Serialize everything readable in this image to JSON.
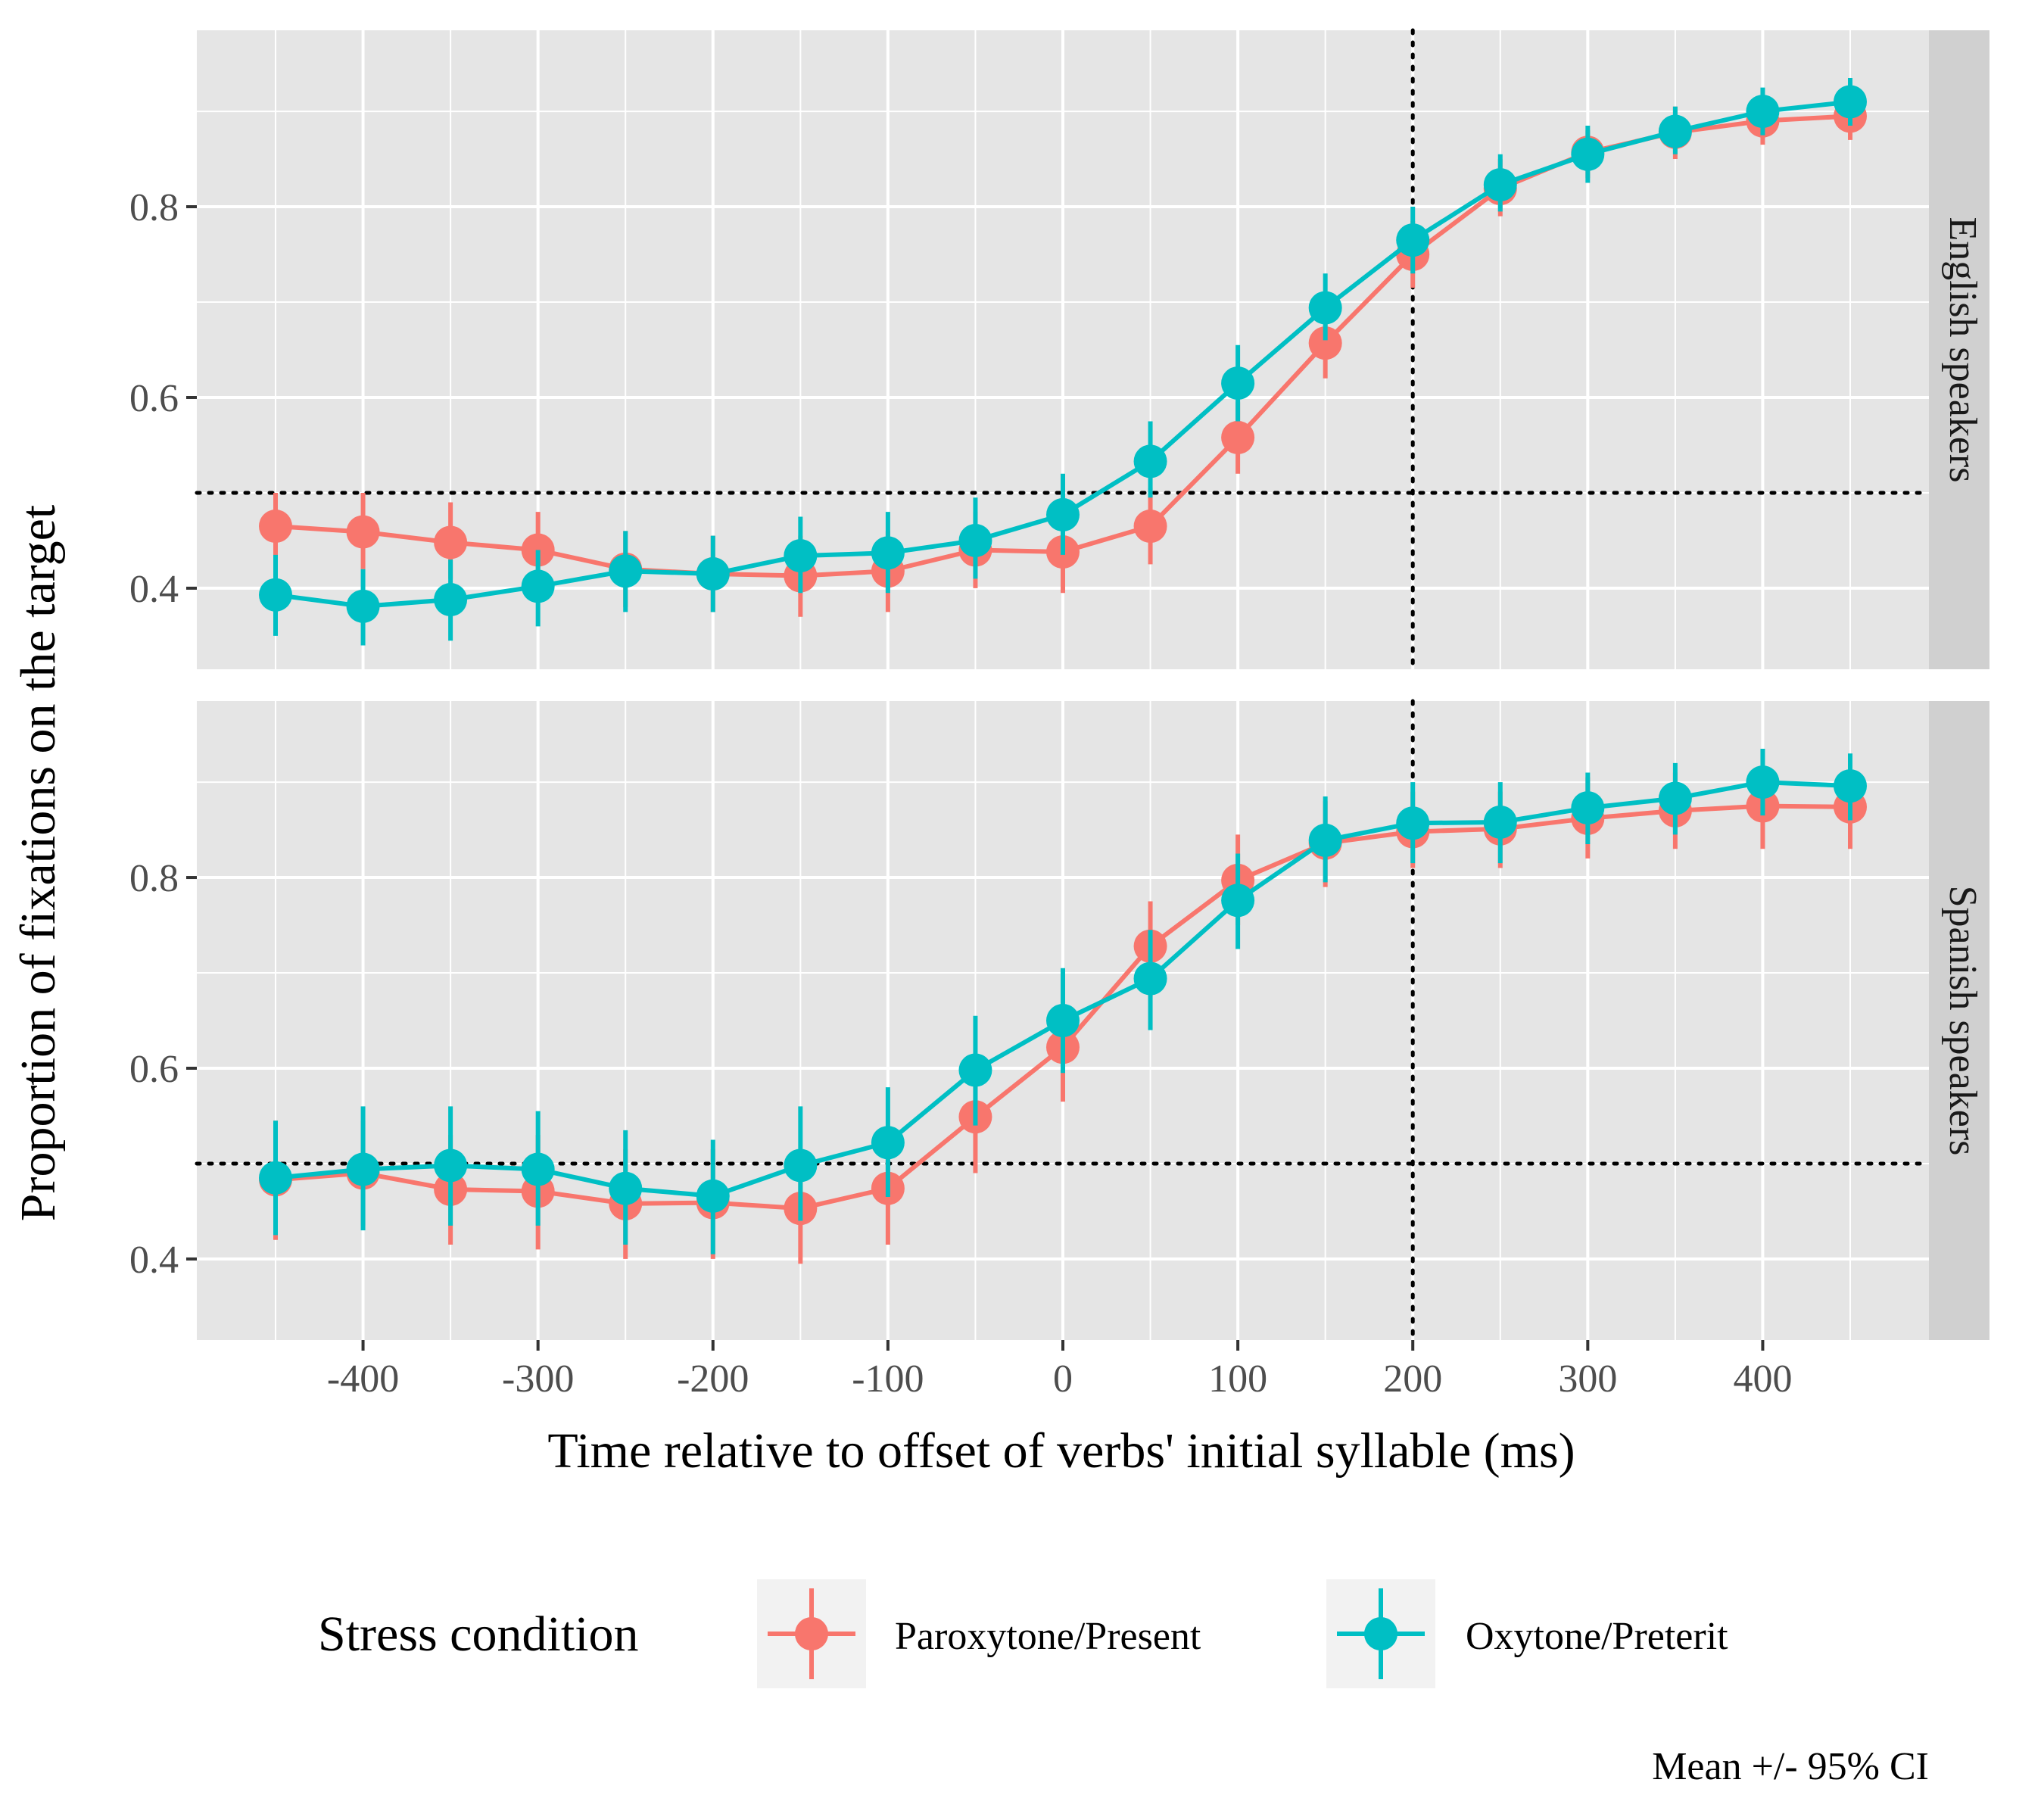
{
  "chart_data": {
    "type": "line",
    "caption": "Mean +/- 95% CI",
    "xlabel": "Time relative to offset of verbs' initial syllable (ms)",
    "ylabel": "Proportion of fixations on the target",
    "xlim": [
      -495,
      495
    ],
    "ylim": [
      0.315,
      0.985
    ],
    "x_ticks": [
      -400,
      -300,
      -200,
      -100,
      0,
      100,
      200,
      300,
      400
    ],
    "x_tick_labels": [
      "-400",
      "-300",
      "-200",
      "-100",
      "0",
      "100",
      "200",
      "300",
      "400"
    ],
    "y_ticks": [
      0.4,
      0.6,
      0.8
    ],
    "y_tick_labels": [
      "0.4",
      "0.6",
      "0.8"
    ],
    "grid": true,
    "reference_lines": {
      "h": 0.5,
      "v": 200,
      "style": "dotted"
    },
    "legend": {
      "title": "Stress condition",
      "position": "bottom",
      "entries": [
        "Paroxytone/Present",
        "Oxytone/Preterit"
      ]
    },
    "colors": {
      "Paroxytone/Present": "#f8766d",
      "Oxytone/Preterit": "#00bfc4",
      "panel_bg": "#e5e5e5",
      "strip_bg": "#d0d0d0",
      "grid": "#ffffff"
    },
    "x": [
      -450,
      -400,
      -350,
      -300,
      -250,
      -200,
      -150,
      -100,
      -50,
      0,
      50,
      100,
      150,
      200,
      250,
      300,
      350,
      400,
      450
    ],
    "panels": [
      {
        "label": "English speakers",
        "series": [
          {
            "name": "Paroxytone/Present",
            "values": [
              0.465,
              0.459,
              0.448,
              0.44,
              0.42,
              0.415,
              0.413,
              0.418,
              0.44,
              0.438,
              0.465,
              0.558,
              0.657,
              0.75,
              0.819,
              0.857,
              0.878,
              0.89,
              0.895
            ],
            "ci_low": [
              0.43,
              0.42,
              0.41,
              0.4,
              0.38,
              0.375,
              0.37,
              0.375,
              0.4,
              0.395,
              0.425,
              0.52,
              0.62,
              0.715,
              0.79,
              0.83,
              0.85,
              0.865,
              0.87
            ],
            "ci_high": [
              0.5,
              0.5,
              0.49,
              0.48,
              0.46,
              0.455,
              0.455,
              0.46,
              0.48,
              0.48,
              0.505,
              0.595,
              0.695,
              0.785,
              0.85,
              0.88,
              0.905,
              0.915,
              0.92
            ]
          },
          {
            "name": "Oxytone/Preterit",
            "values": [
              0.393,
              0.381,
              0.388,
              0.402,
              0.418,
              0.415,
              0.434,
              0.437,
              0.45,
              0.477,
              0.533,
              0.615,
              0.694,
              0.765,
              0.823,
              0.855,
              0.879,
              0.9,
              0.91
            ],
            "ci_low": [
              0.35,
              0.34,
              0.345,
              0.36,
              0.375,
              0.375,
              0.395,
              0.395,
              0.41,
              0.435,
              0.495,
              0.575,
              0.66,
              0.73,
              0.795,
              0.825,
              0.855,
              0.875,
              0.885
            ],
            "ci_high": [
              0.435,
              0.42,
              0.43,
              0.44,
              0.46,
              0.455,
              0.475,
              0.48,
              0.495,
              0.52,
              0.575,
              0.655,
              0.73,
              0.8,
              0.855,
              0.885,
              0.905,
              0.925,
              0.935
            ]
          }
        ]
      },
      {
        "label": "Spanish speakers",
        "series": [
          {
            "name": "Paroxytone/Present",
            "values": [
              0.483,
              0.49,
              0.473,
              0.471,
              0.458,
              0.459,
              0.453,
              0.474,
              0.549,
              0.622,
              0.728,
              0.797,
              0.836,
              0.848,
              0.851,
              0.862,
              0.87,
              0.875,
              0.874
            ],
            "ci_low": [
              0.42,
              0.435,
              0.415,
              0.41,
              0.4,
              0.4,
              0.395,
              0.415,
              0.49,
              0.565,
              0.675,
              0.75,
              0.79,
              0.81,
              0.81,
              0.82,
              0.83,
              0.83,
              0.83
            ],
            "ci_high": [
              0.545,
              0.545,
              0.53,
              0.53,
              0.515,
              0.515,
              0.51,
              0.535,
              0.605,
              0.68,
              0.775,
              0.845,
              0.88,
              0.89,
              0.89,
              0.905,
              0.91,
              0.915,
              0.915
            ]
          },
          {
            "name": "Oxytone/Preterit",
            "values": [
              0.485,
              0.494,
              0.498,
              0.494,
              0.474,
              0.466,
              0.498,
              0.522,
              0.598,
              0.65,
              0.694,
              0.776,
              0.839,
              0.857,
              0.858,
              0.873,
              0.883,
              0.9,
              0.896
            ],
            "ci_low": [
              0.425,
              0.43,
              0.435,
              0.435,
              0.415,
              0.405,
              0.44,
              0.465,
              0.54,
              0.595,
              0.64,
              0.725,
              0.795,
              0.815,
              0.815,
              0.835,
              0.845,
              0.865,
              0.86
            ],
            "ci_high": [
              0.545,
              0.56,
              0.56,
              0.555,
              0.535,
              0.525,
              0.56,
              0.58,
              0.655,
              0.705,
              0.745,
              0.825,
              0.885,
              0.9,
              0.9,
              0.91,
              0.92,
              0.935,
              0.93
            ]
          }
        ]
      }
    ]
  }
}
